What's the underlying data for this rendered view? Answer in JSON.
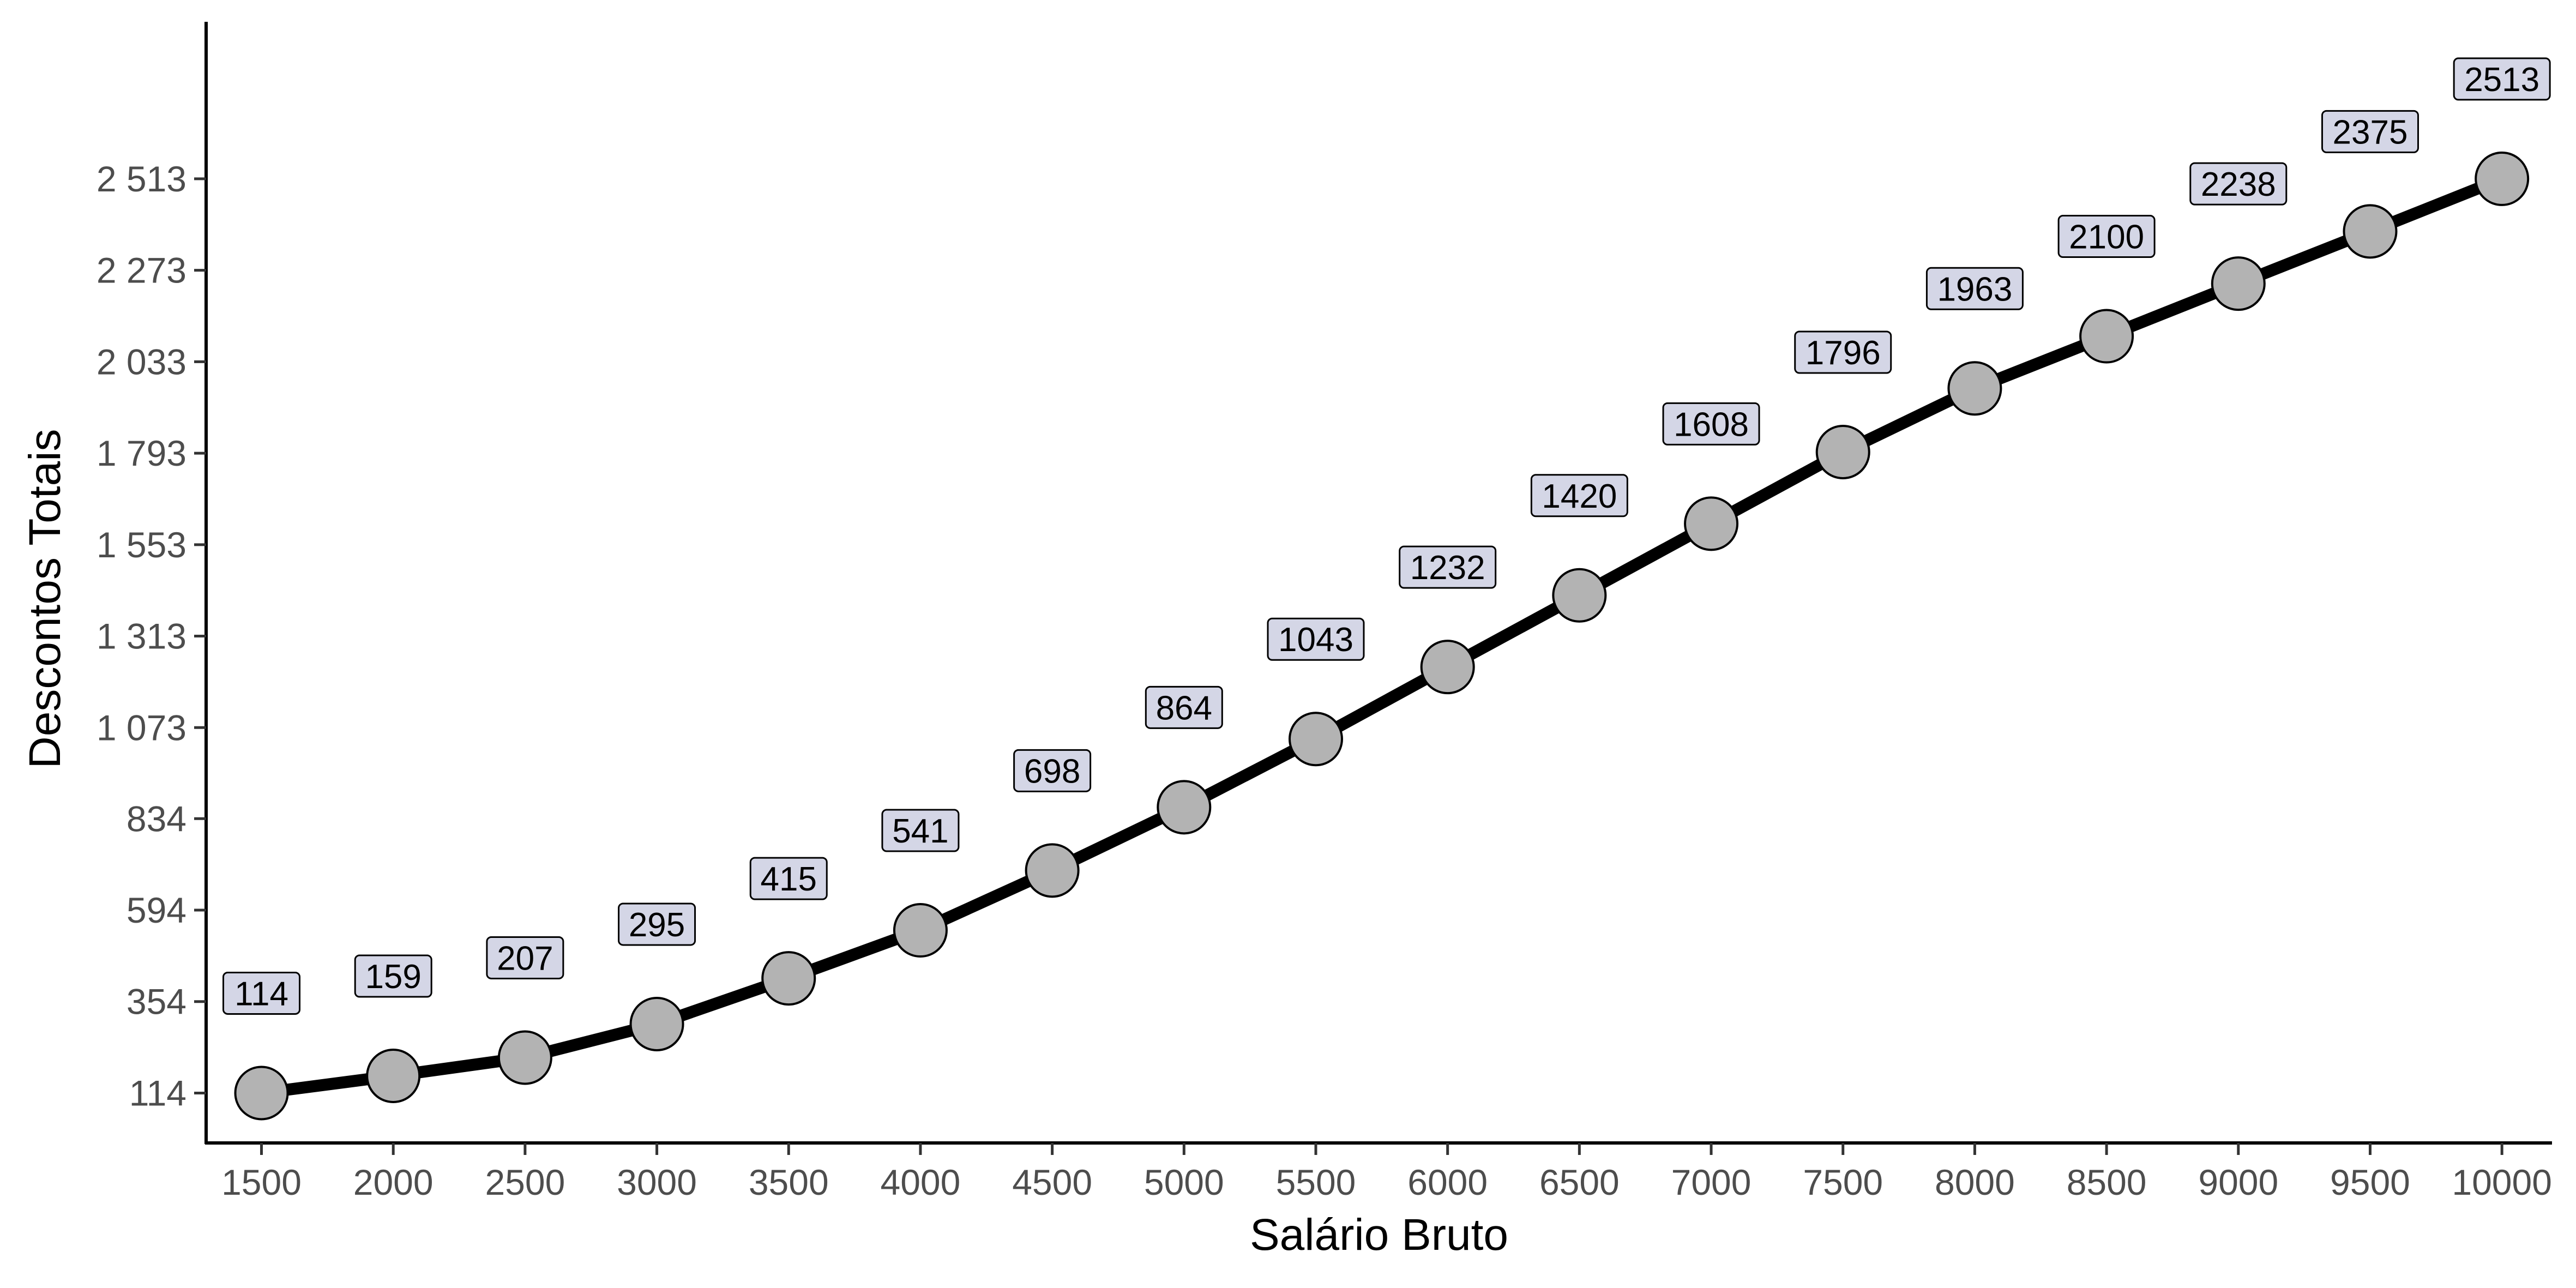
{
  "chart_data": {
    "type": "line",
    "title": "",
    "xlabel": "Salário Bruto",
    "ylabel": "Descontos Totais",
    "x": [
      1500,
      2000,
      2500,
      3000,
      3500,
      4000,
      4500,
      5000,
      5500,
      6000,
      6500,
      7000,
      7500,
      8000,
      8500,
      9000,
      9500,
      10000
    ],
    "y": [
      114,
      159,
      207,
      295,
      415,
      541,
      698,
      864,
      1043,
      1232,
      1420,
      1608,
      1796,
      1963,
      2100,
      2238,
      2375,
      2513
    ],
    "data_labels": [
      "114",
      "159",
      "207",
      "295",
      "415",
      "541",
      "698",
      "864",
      "1043",
      "1232",
      "1420",
      "1608",
      "1796",
      "1963",
      "2100",
      "2238",
      "2375",
      "2513"
    ],
    "x_ticks": [
      1500,
      2000,
      2500,
      3000,
      3500,
      4000,
      4500,
      5000,
      5500,
      6000,
      6500,
      7000,
      7500,
      8000,
      8500,
      9000,
      9500,
      10000
    ],
    "x_tick_labels": [
      "1500",
      "2000",
      "2500",
      "3000",
      "3500",
      "4000",
      "4500",
      "5000",
      "5500",
      "6000",
      "6500",
      "7000",
      "7500",
      "8000",
      "8500",
      "9000",
      "9500",
      "10000"
    ],
    "y_ticks": [
      114,
      354,
      594,
      834,
      1073,
      1313,
      1553,
      1793,
      2033,
      2273,
      2513
    ],
    "y_tick_labels": [
      "114",
      "354",
      "594",
      "834",
      "1 073",
      "1 313",
      "1 553",
      "1 793",
      "2 033",
      "2 273",
      "2 513"
    ],
    "xlim": [
      1290,
      10190
    ],
    "ylim": [
      -17,
      2925
    ],
    "grid": false,
    "legend": "none",
    "colors": {
      "line": "#000000",
      "point_fill": "#b3b3b3",
      "point_stroke": "#000000",
      "label_fill": "#d4d6e6",
      "axis": "#000000",
      "tick_text": "#4d4d4d"
    }
  }
}
